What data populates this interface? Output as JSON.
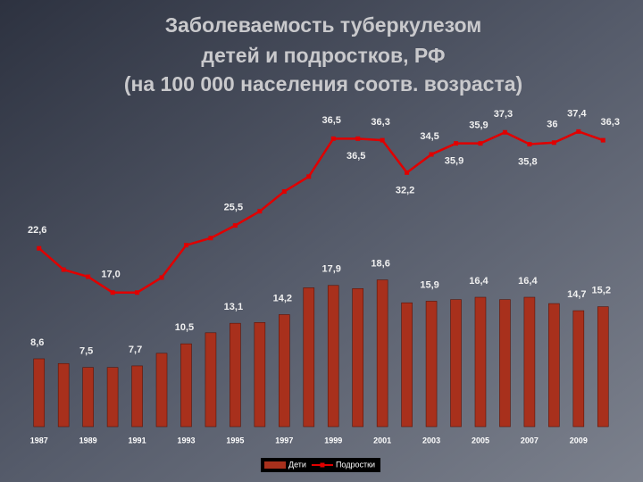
{
  "chart_data": {
    "type": "bar-line",
    "title": [
      "Заболеваемость туберкулезом",
      "детей и подростков, РФ",
      "(на 100 000 населения соотв. возраста)"
    ],
    "categories": [
      "1987",
      null,
      "1989",
      null,
      "1991",
      null,
      "1993",
      null,
      "1995",
      null,
      "1997",
      null,
      "1999",
      null,
      "2001",
      null,
      "2003",
      null,
      "2005",
      null,
      "2007",
      null,
      "2009",
      null
    ],
    "series": [
      {
        "name": "Дети",
        "type": "bar",
        "color": "#a8301c",
        "values": [
          8.6,
          8.0,
          7.5,
          7.5,
          7.7,
          9.3,
          10.5,
          11.9,
          13.1,
          13.2,
          14.2,
          17.6,
          17.9,
          17.5,
          18.6,
          15.7,
          15.9,
          16.1,
          16.4,
          16.1,
          16.4,
          15.6,
          14.7,
          15.2
        ],
        "value_labels": [
          "8,6",
          null,
          "7,5",
          null,
          "7,7",
          null,
          "10,5",
          null,
          "13,1",
          null,
          "14,2",
          null,
          "17,9",
          null,
          "18,6",
          null,
          "15,9",
          null,
          "16,4",
          null,
          "16,4",
          null,
          "14,7",
          "15,2"
        ]
      },
      {
        "name": "Подростки",
        "type": "line",
        "color": "#e00000",
        "values": [
          22.6,
          19.9,
          19.0,
          17.0,
          17.0,
          18.9,
          23.0,
          23.9,
          25.5,
          27.3,
          29.8,
          31.7,
          36.5,
          36.5,
          36.3,
          32.2,
          34.5,
          35.9,
          35.9,
          37.3,
          35.8,
          36,
          37.4,
          36.3
        ],
        "value_labels": [
          "22,6",
          null,
          null,
          "17,0",
          null,
          null,
          null,
          null,
          "25,5",
          null,
          null,
          null,
          "36,5",
          "36,5",
          "36,3",
          "32,2",
          "34,5",
          "35,9",
          "35,9",
          "37,3",
          "35,8",
          "36",
          "37,4",
          "36,3"
        ]
      }
    ],
    "ylim": [
      0,
      50
    ]
  }
}
